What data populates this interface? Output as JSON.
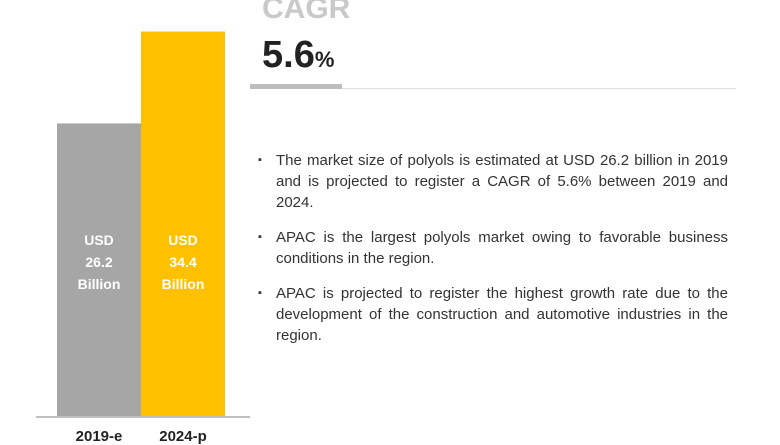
{
  "chart_data": {
    "type": "bar",
    "categories": [
      "2019-e",
      "2024-p"
    ],
    "values": [
      26.2,
      34.4
    ],
    "unit_prefix": "USD",
    "unit_suffix": "Billion",
    "colors": [
      "#a6a6a6",
      "#ffc000"
    ],
    "ylim": [
      0,
      36.5
    ],
    "bar_labels": [
      [
        "USD",
        "26.2",
        "Billion"
      ],
      [
        "USD",
        "34.4",
        "Billion"
      ]
    ]
  },
  "cagr": {
    "title": "CAGR",
    "value": "5.6",
    "unit": "%"
  },
  "bullet_symbol": "▪",
  "bullets": [
    "The market size of polyols is estimated at USD 26.2 billion in 2019 and is projected to register a CAGR of 5.6% between 2019 and 2024.",
    "APAC is the largest polyols market owing to favorable business conditions in the region.",
    "APAC is projected to register the highest growth rate due to the development of the construction and automotive industries in the region."
  ]
}
